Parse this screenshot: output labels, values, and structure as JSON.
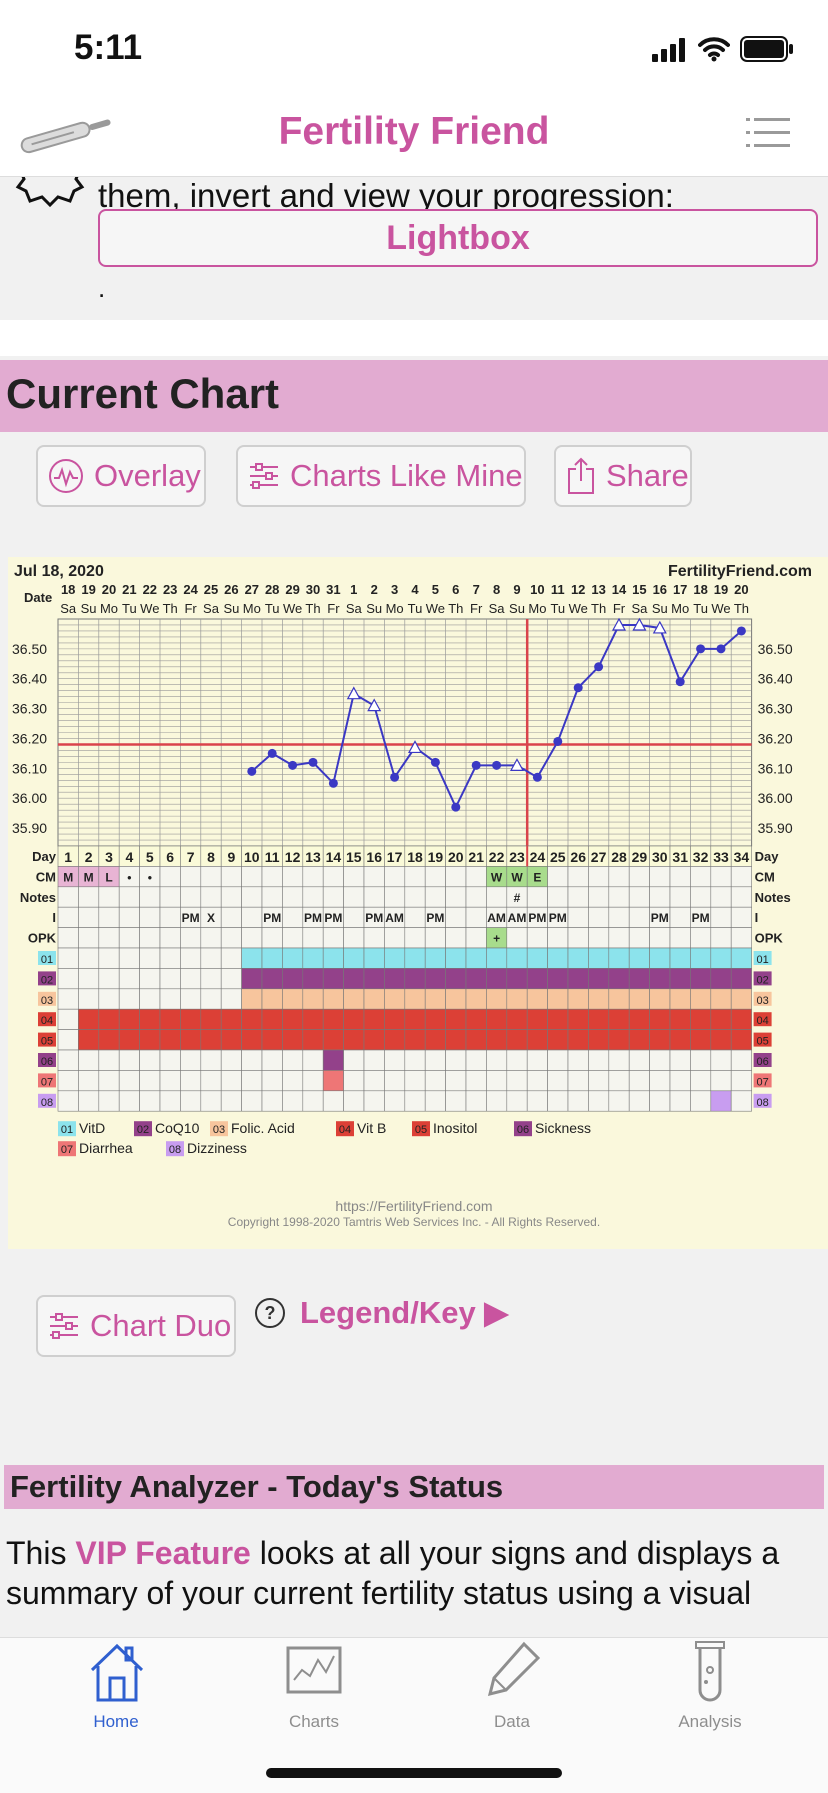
{
  "status_bar": {
    "time": "5:11"
  },
  "header": {
    "title": "Fertility Friend"
  },
  "intro": {
    "text": "them, invert and view your progression:",
    "lightbox_label": "Lightbox",
    "dot": "."
  },
  "current_chart": {
    "heading": "Current Chart",
    "overlay_label": "Overlay",
    "charts_like_mine_label": "Charts Like Mine",
    "share_label": "Share",
    "chart_duo_label": "Chart Duo",
    "legend_key_label": "Legend/Key ▶"
  },
  "chart_data": {
    "type": "line",
    "title": "Jul 18, 2020",
    "site": "FertilityFriend.com",
    "dates": [
      "18",
      "19",
      "20",
      "21",
      "22",
      "23",
      "24",
      "25",
      "26",
      "27",
      "28",
      "29",
      "30",
      "31",
      "1",
      "2",
      "3",
      "4",
      "5",
      "6",
      "7",
      "8",
      "9",
      "10",
      "11",
      "12",
      "13",
      "14",
      "15",
      "16",
      "17",
      "18",
      "19",
      "20"
    ],
    "weekdays": [
      "Sa",
      "Su",
      "Mo",
      "Tu",
      "We",
      "Th",
      "Fr",
      "Sa",
      "Su",
      "Mo",
      "Tu",
      "We",
      "Th",
      "Fr",
      "Sa",
      "Su",
      "Mo",
      "Tu",
      "We",
      "Th",
      "Fr",
      "Sa",
      "Su",
      "Mo",
      "Tu",
      "We",
      "Th",
      "Fr",
      "Sa",
      "Su",
      "Mo",
      "Tu",
      "We",
      "Th"
    ],
    "cycle_days": [
      1,
      2,
      3,
      4,
      5,
      6,
      7,
      8,
      9,
      10,
      11,
      12,
      13,
      14,
      15,
      16,
      17,
      18,
      19,
      20,
      21,
      22,
      23,
      24,
      25,
      26,
      27,
      28,
      29,
      30,
      31,
      32,
      33,
      34
    ],
    "y_ticks": [
      "36.50",
      "36.40",
      "36.30",
      "36.20",
      "36.10",
      "36.00",
      "35.90"
    ],
    "ylim": [
      35.84,
      36.6
    ],
    "temps": [
      null,
      null,
      null,
      null,
      null,
      null,
      null,
      null,
      null,
      36.09,
      36.15,
      36.11,
      36.12,
      36.05,
      36.35,
      36.31,
      36.07,
      36.17,
      36.12,
      35.97,
      36.11,
      36.11,
      36.11,
      36.07,
      36.19,
      36.37,
      36.44,
      36.58,
      36.58,
      36.57,
      36.39,
      36.5,
      36.5,
      36.56
    ],
    "open_points": [
      15,
      16,
      18,
      23,
      28,
      29,
      30
    ],
    "coverline": 36.18,
    "ovulation_day": 24,
    "row_labels": {
      "date": "Date",
      "day": "Day",
      "cm": "CM",
      "notes": "Notes",
      "i": "I",
      "opk": "OPK"
    },
    "cm_row": {
      "1": "M",
      "2": "M",
      "3": "L",
      "4": "•",
      "5": "•",
      "22": "W",
      "23": "W",
      "24": "E"
    },
    "notes_row": {
      "23": "#"
    },
    "i_row": {
      "7": "PM",
      "8": "X",
      "11": "PM",
      "13": "PM",
      "14": "PM",
      "16": "PM",
      "17": "AM",
      "19": "PM",
      "22": "AM",
      "23": "AM",
      "24": "PM",
      "25": "PM",
      "30": "PM",
      "32": "PM"
    },
    "opk_row": {
      "22": "+"
    },
    "custom_rows": [
      {
        "code": "01",
        "color": "#8ce3ec",
        "days": [
          10,
          34
        ]
      },
      {
        "code": "02",
        "color": "#93418a",
        "days": [
          10,
          34
        ]
      },
      {
        "code": "03",
        "color": "#f7c59d",
        "days": [
          10,
          34
        ]
      },
      {
        "code": "04",
        "color": "#dc4036",
        "days": [
          2,
          34
        ]
      },
      {
        "code": "05",
        "color": "#dc4036",
        "days": [
          2,
          34
        ]
      },
      {
        "code": "06",
        "color": "#93418a",
        "days": [
          14,
          14
        ]
      },
      {
        "code": "07",
        "color": "#ee7676",
        "days": [
          14,
          14
        ]
      },
      {
        "code": "08",
        "color": "#c89df0",
        "days": [
          33,
          33
        ]
      }
    ],
    "legend": [
      {
        "code": "01",
        "label": "VitD",
        "color": "#8ce3ec"
      },
      {
        "code": "02",
        "label": "CoQ10",
        "color": "#93418a"
      },
      {
        "code": "03",
        "label": "Folic. Acid",
        "color": "#f7c59d"
      },
      {
        "code": "04",
        "label": "Vit B",
        "color": "#dc4036"
      },
      {
        "code": "05",
        "label": "Inositol",
        "color": "#dc4036"
      },
      {
        "code": "06",
        "label": "Sickness",
        "color": "#93418a"
      },
      {
        "code": "07",
        "label": "Diarrhea",
        "color": "#ee7676"
      },
      {
        "code": "08",
        "label": "Dizziness",
        "color": "#c89df0"
      }
    ],
    "footer_url": "https://FertilityFriend.com",
    "copyright": "Copyright 1998-2020 Tamtris Web Services Inc. - All Rights Reserved."
  },
  "analyzer": {
    "heading": "Fertility Analyzer - Today's Status",
    "text_pre": "This ",
    "vip": "VIP Feature",
    "text_post": " looks at all your signs and displays a summary of your current fertility status using a visual"
  },
  "tabbar": {
    "home": "Home",
    "charts": "Charts",
    "data": "Data",
    "analysis": "Analysis"
  },
  "colors": {
    "accent": "#c9549f",
    "tab_active": "#2f5fcf"
  }
}
